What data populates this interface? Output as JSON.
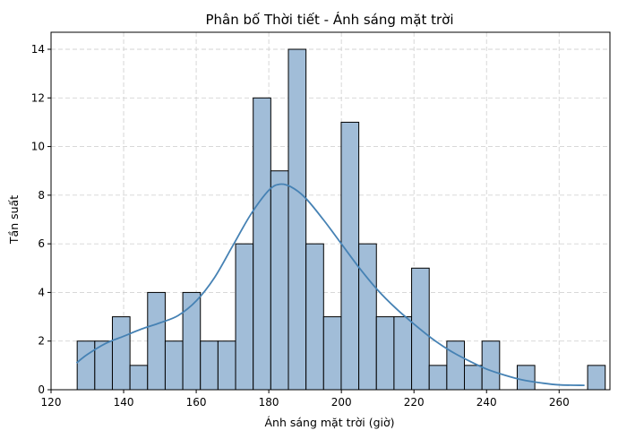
{
  "chart_data": {
    "type": "bar",
    "subtype": "histogram-with-kde",
    "title": "Phân bố Thời tiết - Ánh sáng mặt trời",
    "xlabel": "Ánh sáng mặt trời (giờ)",
    "ylabel": "Tần suất",
    "xlim": [
      120,
      274
    ],
    "ylim": [
      0,
      14.7
    ],
    "xticks": [
      120,
      140,
      160,
      180,
      200,
      220,
      240,
      260
    ],
    "yticks": [
      0,
      2,
      4,
      6,
      8,
      10,
      12,
      14
    ],
    "grid": true,
    "bin_start": 127.2,
    "bin_width": 4.85,
    "values": [
      2,
      2,
      3,
      1,
      4,
      2,
      4,
      2,
      2,
      6,
      12,
      9,
      14,
      6,
      3,
      11,
      6,
      3,
      3,
      5,
      1,
      2,
      1,
      2,
      0,
      1,
      0,
      0,
      0,
      1
    ],
    "kde": {
      "x": [
        127,
        130,
        135,
        140,
        145,
        150,
        155,
        160,
        165,
        170,
        175,
        180,
        183,
        186,
        190,
        195,
        200,
        205,
        210,
        215,
        220,
        225,
        230,
        235,
        240,
        245,
        250,
        255,
        260,
        267
      ],
      "y": [
        1.1,
        1.45,
        1.9,
        2.2,
        2.5,
        2.75,
        3.05,
        3.65,
        4.6,
        5.9,
        7.2,
        8.2,
        8.45,
        8.35,
        7.9,
        7.0,
        6.0,
        5.0,
        4.1,
        3.35,
        2.7,
        2.1,
        1.6,
        1.2,
        0.85,
        0.6,
        0.4,
        0.28,
        0.2,
        0.18
      ]
    },
    "colors": {
      "bar_fill": "#a1bdd8",
      "bar_edge": "#000000",
      "kde_line": "#4682b4",
      "grid": "#d3d3d3"
    }
  }
}
